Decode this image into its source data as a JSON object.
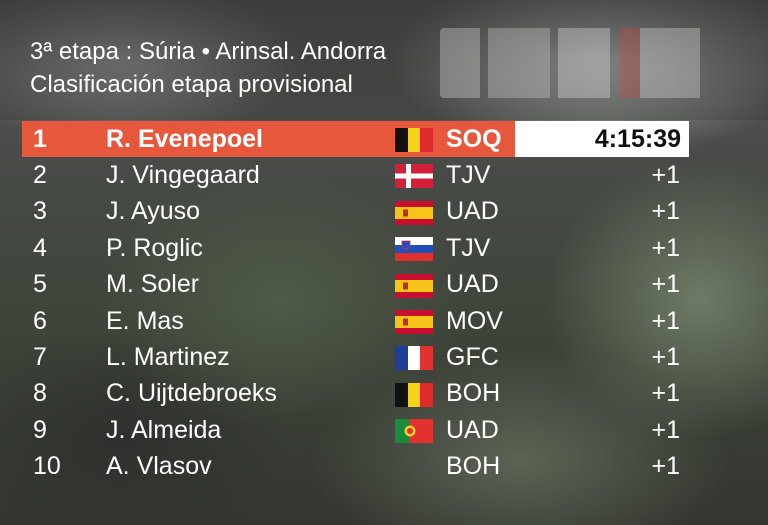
{
  "stage": {
    "title": "3ª etapa : Súria • Arinsal. Andorra",
    "subtitle": "Clasificación etapa provisional"
  },
  "leader_time": "4:15:39",
  "classification": [
    {
      "pos": "1",
      "rider": "R. Evenepoel",
      "flag": "belgium",
      "team": "SOQ",
      "gap": ""
    },
    {
      "pos": "2",
      "rider": "J. Vingegaard",
      "flag": "denmark",
      "team": "TJV",
      "gap": "+1"
    },
    {
      "pos": "3",
      "rider": "J. Ayuso",
      "flag": "spain",
      "team": "UAD",
      "gap": "+1"
    },
    {
      "pos": "4",
      "rider": "P. Roglic",
      "flag": "slovenia",
      "team": "TJV",
      "gap": "+1"
    },
    {
      "pos": "5",
      "rider": "M. Soler",
      "flag": "spain",
      "team": "UAD",
      "gap": "+1"
    },
    {
      "pos": "6",
      "rider": "E. Mas",
      "flag": "spain",
      "team": "MOV",
      "gap": "+1"
    },
    {
      "pos": "7",
      "rider": "L. Martinez",
      "flag": "france",
      "team": "GFC",
      "gap": "+1"
    },
    {
      "pos": "8",
      "rider": "C. Uijtdebroeks",
      "flag": "belgium",
      "team": "BOH",
      "gap": "+1"
    },
    {
      "pos": "9",
      "rider": "J. Almeida",
      "flag": "portugal",
      "team": "UAD",
      "gap": "+1"
    },
    {
      "pos": "10",
      "rider": "A. Vlasov",
      "flag": "",
      "team": "BOH",
      "gap": "+1"
    }
  ],
  "colors": {
    "leader_bar": "#e6573b",
    "time_box": "#ffffff",
    "text": "#ffffff"
  }
}
